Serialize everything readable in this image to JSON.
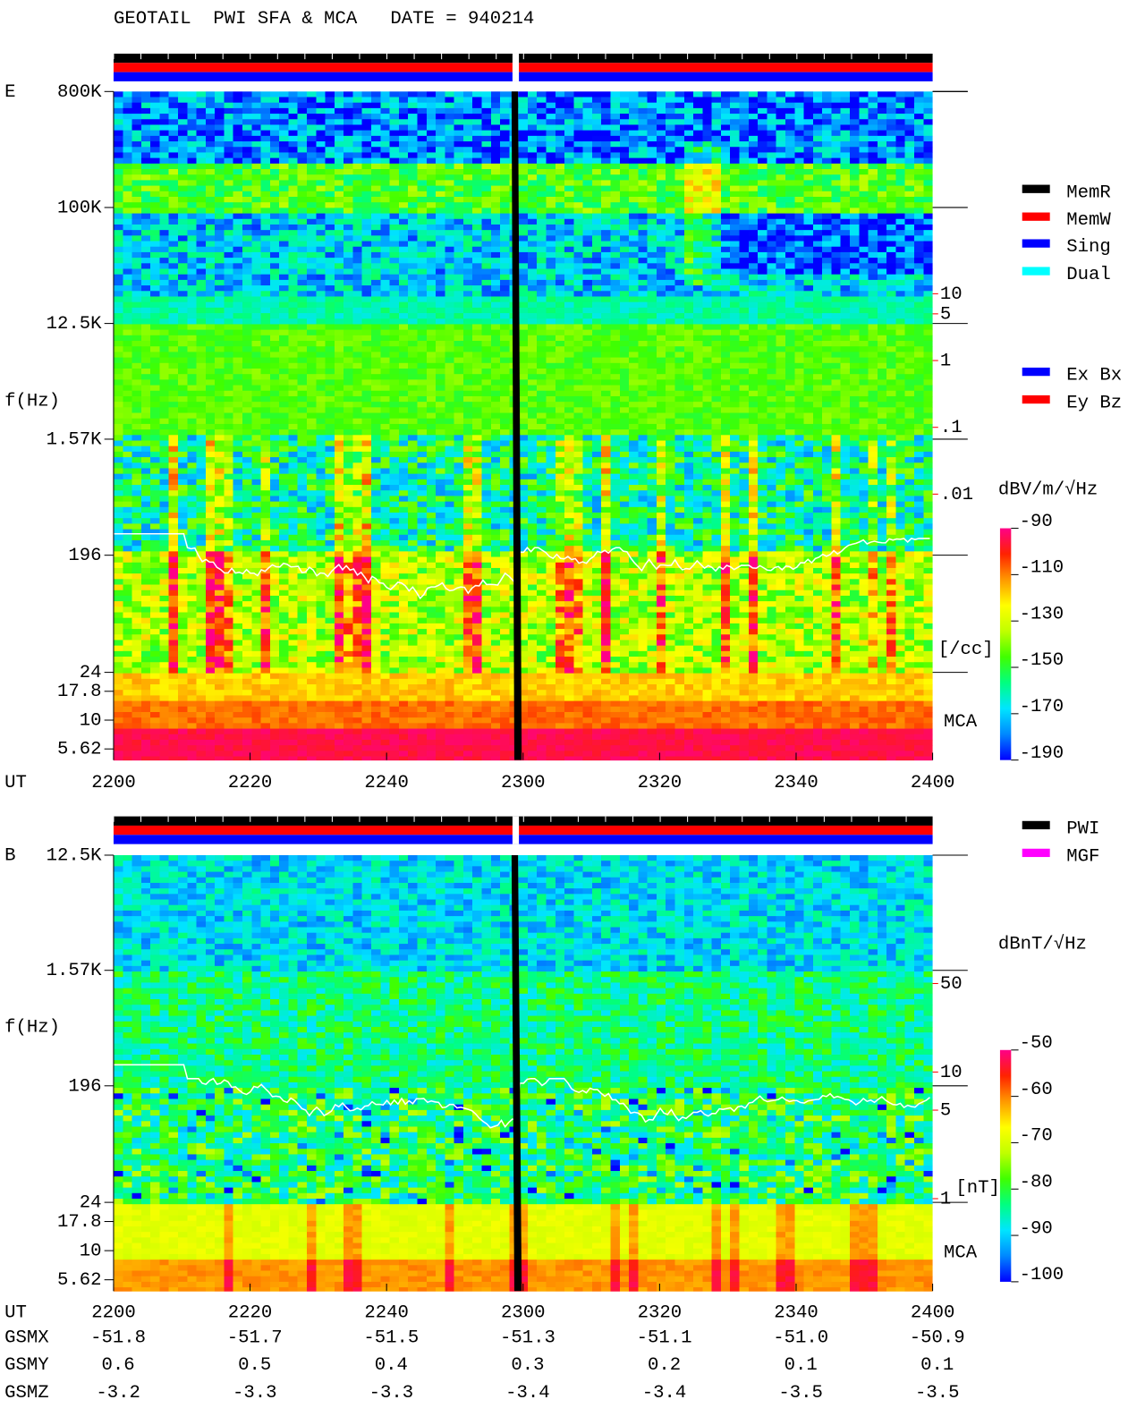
{
  "chart_data": [
    {
      "type": "spectrogram",
      "title": "GEOTAIL  PWI SFA & MCA   DATE = 940214",
      "panel_label": "E",
      "ylabel": "f(Hz)",
      "xlabel": "UT",
      "categories": [
        "2200",
        "2220",
        "2240",
        "2300",
        "2320",
        "2340",
        "2400"
      ],
      "log_y": true,
      "ylim": [
        24,
        800000
      ],
      "yticks": [
        {
          "value": 800000,
          "label": "800K"
        },
        {
          "value": 100000,
          "label": "100K"
        },
        {
          "value": 12500,
          "label": "12.5K"
        },
        {
          "value": 1570,
          "label": "1.57K"
        },
        196,
        24
      ],
      "mca_label": "MCA",
      "mca_ylim": [
        4.5,
        26
      ],
      "mca_yticks": [
        17.8,
        10,
        5.62
      ],
      "y2_label": "[/cc]",
      "y2_color": "#ff0000",
      "y2lim": [
        0.01,
        10
      ],
      "y2ticks": [
        10,
        5,
        1,
        {
          "value": 0.1,
          "label": ".1"
        },
        {
          "value": 0.01,
          "label": ".01"
        }
      ],
      "colorbar_label": "dBV/m/√Hz",
      "clim": [
        -190,
        -90
      ],
      "cticks": [
        -90,
        -110,
        -130,
        -150,
        -170,
        -190
      ],
      "colormap": [
        "#0000ff",
        "#0088ff",
        "#00e5ff",
        "#00ff80",
        "#40ff00",
        "#c0ff00",
        "#ffff00",
        "#ff9900",
        "#ff2200",
        "#ff0088"
      ],
      "legend": [
        {
          "name": "MemR",
          "color": "#000000"
        },
        {
          "name": "MemW",
          "color": "#ff0000"
        },
        {
          "name": "Sing",
          "color": "#0000ff"
        },
        {
          "name": "Dual",
          "color": "#00ffff"
        }
      ],
      "legend2": [
        {
          "name": "Ex Bx",
          "color": "#0000ff"
        },
        {
          "name": "Ey Bz",
          "color": "#ff0000"
        }
      ]
    },
    {
      "type": "spectrogram",
      "panel_label": "B",
      "ylabel": "f(Hz)",
      "xlabel": "UT",
      "categories": [
        "2200",
        "2220",
        "2240",
        "2300",
        "2320",
        "2340",
        "2400"
      ],
      "log_y": true,
      "ylim": [
        24,
        12500
      ],
      "yticks": [
        {
          "value": 12500,
          "label": "12.5K"
        },
        {
          "value": 1570,
          "label": "1.57K"
        },
        196,
        24
      ],
      "mca_label": "MCA",
      "mca_ylim": [
        4.5,
        26
      ],
      "mca_yticks": [
        17.8,
        10,
        5.62
      ],
      "y2_label": "[nT]",
      "y2_color": "#ff0000",
      "y2lim": [
        1,
        50
      ],
      "y2ticks": [
        50,
        10,
        5,
        1
      ],
      "colorbar_label": "dBnT/√Hz",
      "clim": [
        -100,
        -50
      ],
      "cticks": [
        -50,
        -60,
        -70,
        -80,
        -90,
        -100
      ],
      "colormap": [
        "#0000ff",
        "#0088ff",
        "#00e5ff",
        "#00ff80",
        "#40ff00",
        "#c0ff00",
        "#ffff00",
        "#ff9900",
        "#ff2200",
        "#ff0088"
      ],
      "legend": [
        {
          "name": "PWI",
          "color": "#000000"
        },
        {
          "name": "MGF",
          "color": "#ff00ff"
        }
      ]
    }
  ],
  "orbit": {
    "rows": [
      {
        "label": "GSMX",
        "values": [
          "-51.8",
          "-51.7",
          "-51.5",
          "-51.3",
          "-51.1",
          "-51.0",
          "-50.9"
        ]
      },
      {
        "label": "GSMY",
        "values": [
          "0.6",
          "0.5",
          "0.4",
          "0.3",
          "0.2",
          "0.1",
          "0.1"
        ]
      },
      {
        "label": "GSMZ",
        "values": [
          "-3.2",
          "-3.3",
          "-3.3",
          "-3.4",
          "-3.4",
          "-3.5",
          "-3.5"
        ]
      }
    ]
  }
}
